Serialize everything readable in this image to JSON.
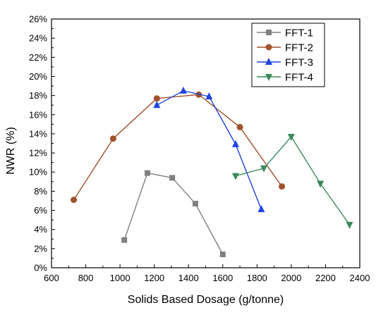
{
  "chart_data": {
    "type": "line",
    "title": "",
    "xlabel": "Solids Based Dosage (g/tonne)",
    "ylabel": "NWR (%)",
    "xlim": [
      600,
      2400
    ],
    "ylim": [
      0,
      26
    ],
    "x_ticks": [
      600,
      800,
      1000,
      1200,
      1400,
      1600,
      1800,
      2000,
      2200,
      2400
    ],
    "y_ticks": [
      0,
      2,
      4,
      6,
      8,
      10,
      12,
      14,
      16,
      18,
      20,
      22,
      24,
      26
    ],
    "y_tick_labels": [
      "0%",
      "2%",
      "4%",
      "6%",
      "8%",
      "10%",
      "12%",
      "14%",
      "16%",
      "18%",
      "20%",
      "22%",
      "24%",
      "26%"
    ],
    "grid": false,
    "legend_position": "top-right",
    "series": [
      {
        "name": "FFT-1",
        "color": "#808080",
        "marker": "square",
        "x": [
          1025,
          1160,
          1305,
          1440,
          1600
        ],
        "y": [
          2.9,
          9.9,
          9.4,
          6.7,
          1.4
        ]
      },
      {
        "name": "FFT-2",
        "color": "#a0522d",
        "marker": "circle",
        "x": [
          730,
          960,
          1215,
          1460,
          1700,
          1945
        ],
        "y": [
          7.1,
          13.5,
          17.7,
          18.1,
          14.7,
          8.5
        ]
      },
      {
        "name": "FFT-3",
        "color": "#1f45e0",
        "marker": "triangle-up",
        "x": [
          1215,
          1370,
          1520,
          1675,
          1825
        ],
        "y": [
          17.0,
          18.5,
          17.9,
          12.9,
          6.1
        ]
      },
      {
        "name": "FFT-4",
        "color": "#3a8a5c",
        "marker": "triangle-down",
        "x": [
          1675,
          1840,
          2000,
          2170,
          2340
        ],
        "y": [
          9.6,
          10.4,
          13.7,
          8.8,
          4.5
        ]
      }
    ]
  }
}
